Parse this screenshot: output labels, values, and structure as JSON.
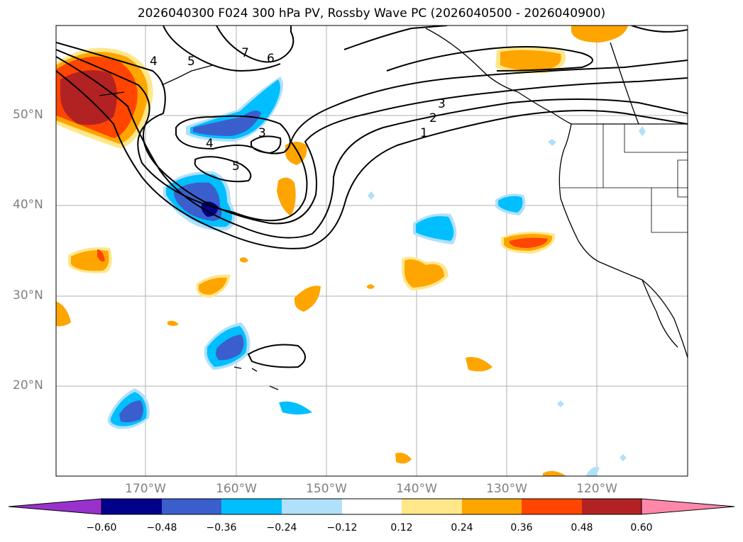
{
  "title": "2026040300 F024 300 hPa PV, Rossby Wave PC (2026040500 - 2026040900)",
  "map": {
    "lat_labels": [
      "50°N",
      "40°N",
      "30°N",
      "20°N"
    ],
    "lon_labels": [
      "170°W",
      "160°W",
      "150°W",
      "140°W",
      "130°W",
      "120°W"
    ],
    "contour_labels": [
      "7",
      "6",
      "5",
      "4",
      "3",
      "2",
      "1",
      "4",
      "5",
      "3"
    ]
  },
  "colorbar": {
    "ticks": [
      "−0.60",
      "−0.48",
      "−0.36",
      "−0.24",
      "−0.12",
      "0.12",
      "0.24",
      "0.36",
      "0.48",
      "0.60"
    ],
    "colors": [
      "#9932cc",
      "#00008b",
      "#3a5fcd",
      "#00bfff",
      "#b0e0fa",
      "#ffffff",
      "#ffe78a",
      "#ffa500",
      "#ff4500",
      "#b22222",
      "#ff88aa"
    ]
  }
}
